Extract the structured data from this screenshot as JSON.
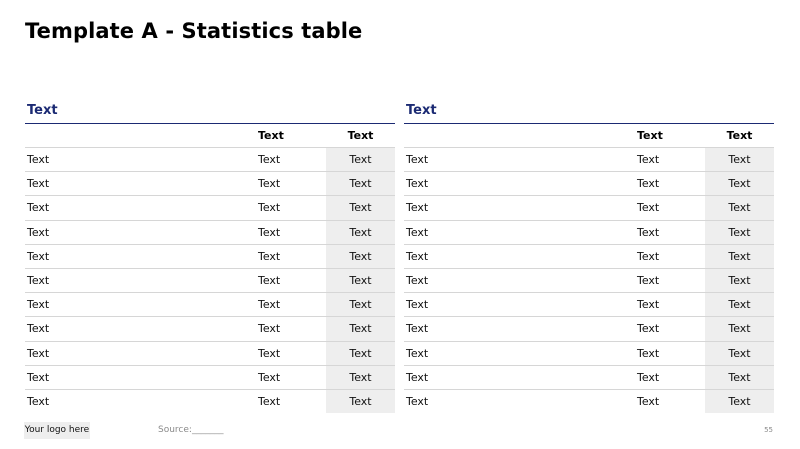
{
  "title": "Template A - Statistics table",
  "tables": [
    {
      "header": "Text",
      "columns": [
        "",
        "Text",
        "Text"
      ],
      "rows": [
        [
          "Text",
          "Text",
          "Text"
        ],
        [
          "Text",
          "Text",
          "Text"
        ],
        [
          "Text",
          "Text",
          "Text"
        ],
        [
          "Text",
          "Text",
          "Text"
        ],
        [
          "Text",
          "Text",
          "Text"
        ],
        [
          "Text",
          "Text",
          "Text"
        ],
        [
          "Text",
          "Text",
          "Text"
        ],
        [
          "Text",
          "Text",
          "Text"
        ],
        [
          "Text",
          "Text",
          "Text"
        ],
        [
          "Text",
          "Text",
          "Text"
        ],
        [
          "Text",
          "Text",
          "Text"
        ]
      ]
    },
    {
      "header": "Text",
      "columns": [
        "",
        "Text",
        "Text"
      ],
      "rows": [
        [
          "Text",
          "Text",
          "Text"
        ],
        [
          "Text",
          "Text",
          "Text"
        ],
        [
          "Text",
          "Text",
          "Text"
        ],
        [
          "Text",
          "Text",
          "Text"
        ],
        [
          "Text",
          "Text",
          "Text"
        ],
        [
          "Text",
          "Text",
          "Text"
        ],
        [
          "Text",
          "Text",
          "Text"
        ],
        [
          "Text",
          "Text",
          "Text"
        ],
        [
          "Text",
          "Text",
          "Text"
        ],
        [
          "Text",
          "Text",
          "Text"
        ],
        [
          "Text",
          "Text",
          "Text"
        ]
      ]
    }
  ],
  "footer": {
    "logo": "Your logo here",
    "source": "Source:_______",
    "page_number": "55"
  },
  "colors": {
    "header_text": "#1b2a73",
    "header_rule": "#1b2a73",
    "highlight_column": "#eeeeee",
    "row_divider": "#d6d6d6"
  }
}
